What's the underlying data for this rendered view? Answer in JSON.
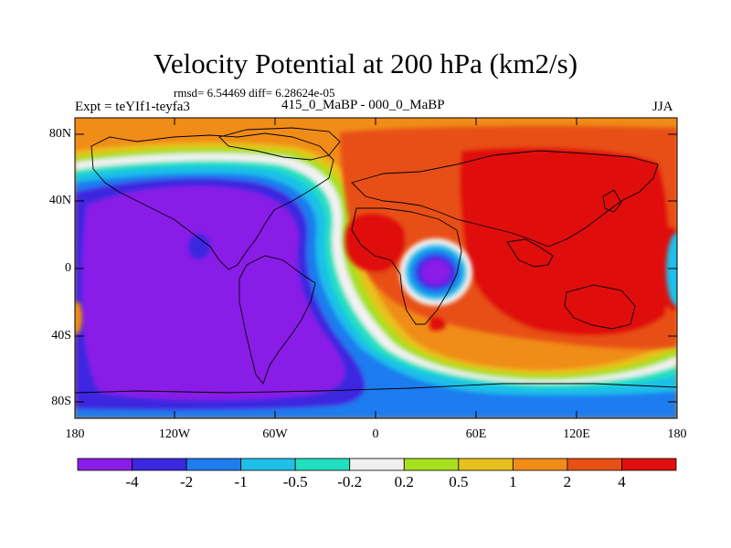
{
  "figure": {
    "title": "Velocity Potential at 200 hPa (km2/s)",
    "stats": "rmsd= 6.54469 diff= 6.28624e-05",
    "left_label": "Expt = teYIf1-teyfa3",
    "center_label": "415_0_MaBP - 000_0_MaBP",
    "right_label": "JJA"
  },
  "axes": {
    "lat_ticks": [
      "80N",
      "40N",
      "0",
      "40S",
      "80S"
    ],
    "lon_ticks": [
      "180",
      "120W",
      "60W",
      "0",
      "60E",
      "120E",
      "180"
    ]
  },
  "colorbar": {
    "labels": [
      "-4",
      "-2",
      "-1",
      "-0.5",
      "-0.2",
      "0.2",
      "0.5",
      "1",
      "2",
      "4"
    ],
    "colors": [
      "#8a1ee8",
      "#3c28e0",
      "#1e7cf0",
      "#1ec0e8",
      "#20e0c0",
      "#f0f0f0",
      "#a8e01e",
      "#e8c01e",
      "#f08c18",
      "#e85014",
      "#e01010"
    ]
  },
  "chart_data": {
    "type": "heatmap",
    "title": "Velocity Potential at 200 hPa (km2/s)",
    "variable": "velocity potential difference",
    "units": "km2/s",
    "season": "JJA",
    "levels": [
      -4,
      -2,
      -1,
      -0.5,
      -0.2,
      0.2,
      0.5,
      1,
      2,
      4
    ],
    "x_range": [
      -180,
      180
    ],
    "y_range": [
      -90,
      90
    ],
    "features": [
      {
        "region": "Pacific / Americas / Atlantic",
        "sign": "negative",
        "min_level": "< -4"
      },
      {
        "region": "Eurasia / Indian Ocean / Australia",
        "sign": "positive",
        "max_level": "> 4"
      },
      {
        "region": "East Africa near equator",
        "sign": "negative",
        "min_level": "< -4"
      },
      {
        "region": "Southern Ocean",
        "sign": "positive",
        "level": "0.5 to 2"
      }
    ]
  }
}
